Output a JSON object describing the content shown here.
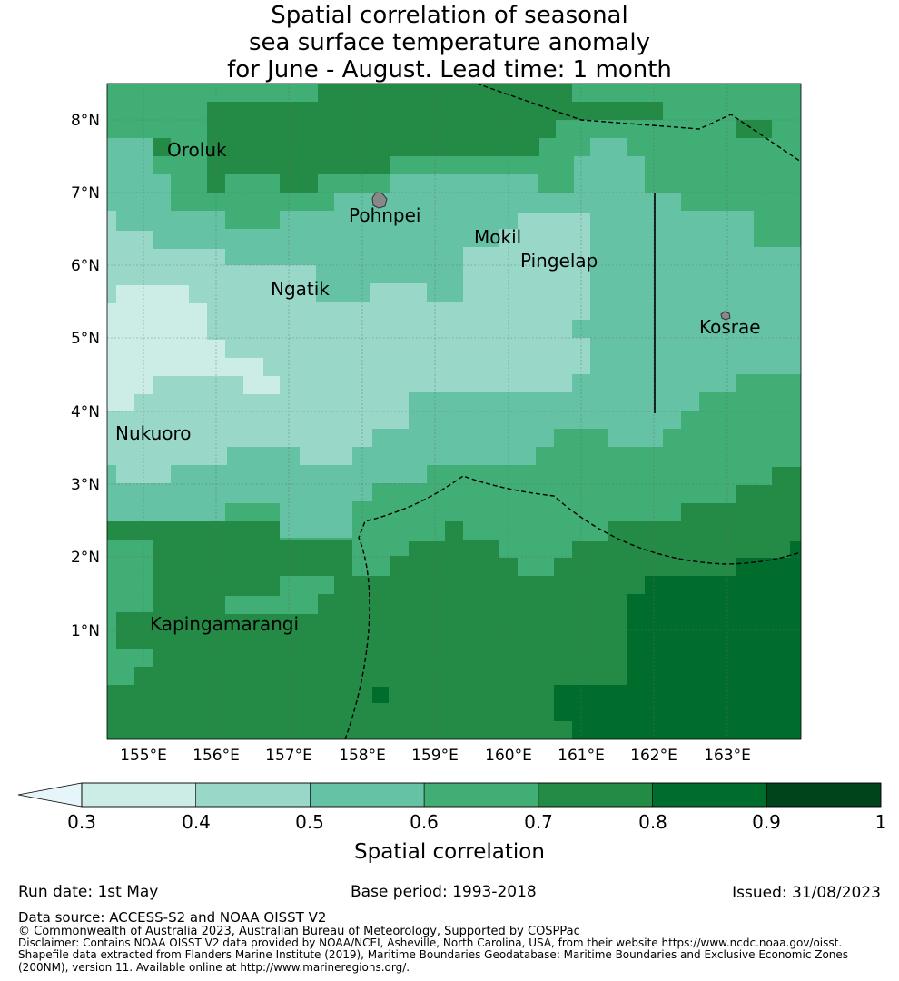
{
  "title": {
    "line1": "Spatial correlation of seasonal",
    "line2": "sea surface temperature anomaly",
    "line3": "for June - August. Lead time: 1 month"
  },
  "map": {
    "lat_labels": [
      "8°N",
      "7°N",
      "6°N",
      "5°N",
      "4°N",
      "3°N",
      "2°N",
      "1°N"
    ],
    "lon_labels": [
      "155°E",
      "156°E",
      "157°E",
      "158°E",
      "159°E",
      "160°E",
      "161°E",
      "162°E",
      "163°E"
    ],
    "place_labels": [
      "Oroluk",
      "Pohnpei",
      "Mokil",
      "Pingelap",
      "Ngatik",
      "Kosrae",
      "Nukuoro",
      "Kapingamarangi"
    ]
  },
  "colorbar": {
    "ticks": [
      "0.3",
      "0.4",
      "0.5",
      "0.6",
      "0.7",
      "0.8",
      "0.9",
      "1"
    ],
    "label": "Spatial correlation",
    "colors": [
      "#e5f5f9",
      "#ccece6",
      "#99d8c9",
      "#66c2a4",
      "#41ae76",
      "#238b45",
      "#006d2c",
      "#00441b"
    ]
  },
  "footer": {
    "run_date": "Run date: 1st May",
    "base_period": "Base period: 1993-2018",
    "issued": "Issued: 31/08/2023",
    "data_source": "Data source: ACCESS-S2 and NOAA OISST V2",
    "copyright": "© Commonwealth of Australia 2023, Australian Bureau of Meteorology, Supported by COSPPac",
    "disclaimer1": "Disclaimer: Contains NOAA OISST V2 data provided by NOAA/NCEI, Asheville, North Carolina, USA, from their website https://www.ncdc.noaa.gov/oisst.",
    "disclaimer2": "Shapefile data extracted from Flanders Marine Institute (2019), Maritime Boundaries Geodatabase: Maritime Boundaries and Exclusive Economic Zones",
    "disclaimer3": "(200NM), version 11. Available online at http://www.marineregions.org/."
  }
}
